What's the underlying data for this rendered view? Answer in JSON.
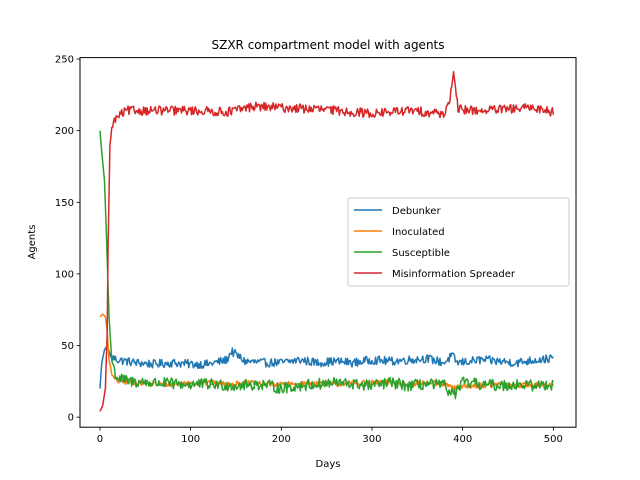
{
  "chart_data": {
    "type": "line",
    "title": "SZXR compartment model with agents",
    "xlabel": "Days",
    "ylabel": "Agents",
    "xlim": [
      -22,
      525
    ],
    "ylim": [
      -7,
      251
    ],
    "xticks": [
      0,
      100,
      200,
      300,
      400,
      500
    ],
    "yticks": [
      0,
      50,
      100,
      150,
      200,
      250
    ],
    "legend": "center-right",
    "grid": false,
    "series": [
      {
        "name": "Debunker",
        "color": "#1f77b4",
        "keypoints": [
          [
            0,
            20
          ],
          [
            2,
            38
          ],
          [
            5,
            47
          ],
          [
            8,
            50
          ],
          [
            12,
            42
          ],
          [
            20,
            40
          ],
          [
            40,
            38
          ],
          [
            60,
            37
          ],
          [
            80,
            38
          ],
          [
            100,
            37
          ],
          [
            120,
            37
          ],
          [
            140,
            40
          ],
          [
            145,
            46
          ],
          [
            160,
            39
          ],
          [
            180,
            38
          ],
          [
            200,
            38
          ],
          [
            220,
            40
          ],
          [
            240,
            38
          ],
          [
            260,
            39
          ],
          [
            280,
            38
          ],
          [
            300,
            40
          ],
          [
            320,
            39
          ],
          [
            340,
            40
          ],
          [
            360,
            41
          ],
          [
            380,
            38
          ],
          [
            388,
            43
          ],
          [
            394,
            38
          ],
          [
            420,
            40
          ],
          [
            440,
            39
          ],
          [
            460,
            38
          ],
          [
            480,
            40
          ],
          [
            500,
            41
          ]
        ],
        "noise": 3.0
      },
      {
        "name": "Inoculated",
        "color": "#ff7f0e",
        "keypoints": [
          [
            0,
            70
          ],
          [
            3,
            72
          ],
          [
            6,
            70
          ],
          [
            8,
            60
          ],
          [
            10,
            40
          ],
          [
            14,
            28
          ],
          [
            20,
            25
          ],
          [
            40,
            24
          ],
          [
            60,
            23
          ],
          [
            80,
            23
          ],
          [
            100,
            24
          ],
          [
            120,
            24
          ],
          [
            140,
            23
          ],
          [
            160,
            24
          ],
          [
            180,
            23
          ],
          [
            200,
            23
          ],
          [
            220,
            23
          ],
          [
            240,
            24
          ],
          [
            260,
            23
          ],
          [
            280,
            24
          ],
          [
            300,
            24
          ],
          [
            320,
            24
          ],
          [
            340,
            23
          ],
          [
            360,
            24
          ],
          [
            380,
            23
          ],
          [
            390,
            20
          ],
          [
            400,
            22
          ],
          [
            420,
            22
          ],
          [
            440,
            23
          ],
          [
            460,
            22
          ],
          [
            480,
            23
          ],
          [
            500,
            23
          ]
        ],
        "noise": 1.8
      },
      {
        "name": "Susceptible",
        "color": "#2ca02c",
        "keypoints": [
          [
            0,
            200
          ],
          [
            2,
            185
          ],
          [
            5,
            165
          ],
          [
            7,
            130
          ],
          [
            8,
            110
          ],
          [
            10,
            70
          ],
          [
            13,
            40
          ],
          [
            18,
            28
          ],
          [
            30,
            25
          ],
          [
            60,
            24
          ],
          [
            90,
            23
          ],
          [
            120,
            23
          ],
          [
            150,
            22
          ],
          [
            180,
            23
          ],
          [
            200,
            20
          ],
          [
            220,
            22
          ],
          [
            240,
            23
          ],
          [
            260,
            24
          ],
          [
            280,
            23
          ],
          [
            300,
            22
          ],
          [
            320,
            24
          ],
          [
            340,
            22
          ],
          [
            360,
            23
          ],
          [
            380,
            22
          ],
          [
            390,
            15
          ],
          [
            400,
            24
          ],
          [
            420,
            23
          ],
          [
            440,
            22
          ],
          [
            460,
            23
          ],
          [
            480,
            22
          ],
          [
            500,
            23
          ]
        ],
        "noise": 4.0
      },
      {
        "name": "Misinformation Spreader",
        "color": "#d62728",
        "keypoints": [
          [
            0,
            4
          ],
          [
            3,
            8
          ],
          [
            6,
            20
          ],
          [
            8,
            60
          ],
          [
            9,
            120
          ],
          [
            11,
            190
          ],
          [
            14,
            205
          ],
          [
            20,
            210
          ],
          [
            30,
            214
          ],
          [
            60,
            214
          ],
          [
            100,
            214
          ],
          [
            140,
            213
          ],
          [
            170,
            217
          ],
          [
            200,
            216
          ],
          [
            240,
            215
          ],
          [
            280,
            213
          ],
          [
            300,
            212
          ],
          [
            340,
            214
          ],
          [
            380,
            212
          ],
          [
            385,
            220
          ],
          [
            390,
            238
          ],
          [
            395,
            215
          ],
          [
            420,
            214
          ],
          [
            450,
            215
          ],
          [
            480,
            216
          ],
          [
            500,
            213
          ]
        ],
        "noise": 3.2
      }
    ]
  }
}
